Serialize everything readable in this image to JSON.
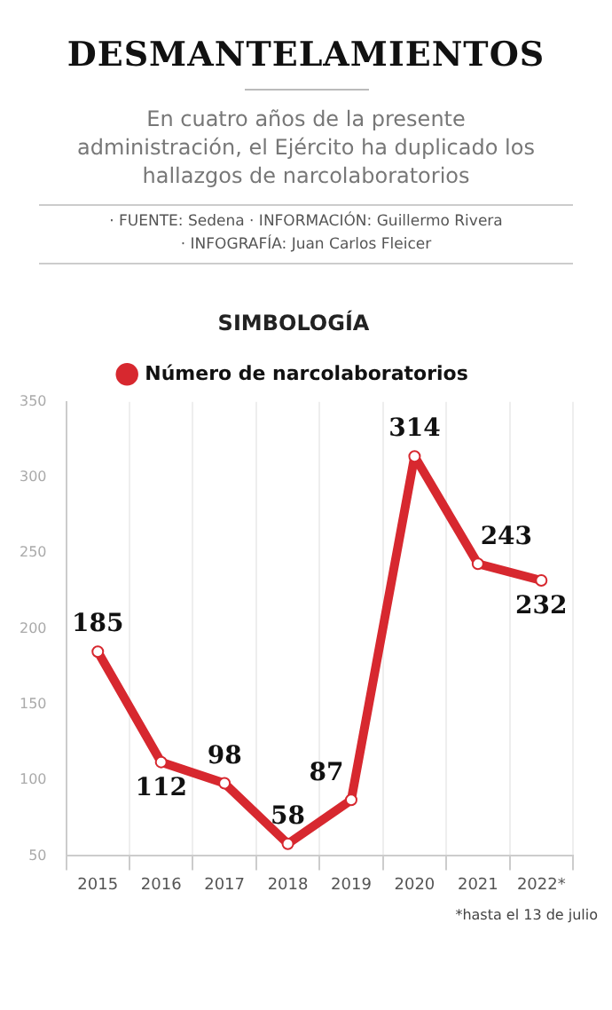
{
  "chart_data": {
    "type": "line",
    "title": "DESMANTELAMIENTOS",
    "subtitle": "En cuatro años de la presente administración, el Ejército ha duplicado los hallazgos de narcolaboratorios",
    "annotations": [
      "· FUENTE: Sedena · INFORMACIÓN: Guillermo Rivera",
      "· INFOGRAFÍA: Juan Carlos Fleicer",
      "*hasta el 13 de julio"
    ],
    "legend_title": "SIMBOLOGÍA",
    "categories": [
      "2015",
      "2016",
      "2017",
      "2018",
      "2019",
      "2020",
      "2021",
      "2022*"
    ],
    "series": [
      {
        "name": "Número de narcolaboratorios",
        "color": "#d7282f",
        "values": [
          185,
          112,
          98,
          58,
          87,
          314,
          243,
          232
        ]
      }
    ],
    "ylim": [
      50,
      350
    ],
    "yticks": [
      50,
      100,
      150,
      200,
      250,
      300,
      350
    ],
    "grid": "x",
    "legend": "top",
    "data_labels": true,
    "marker": "circle",
    "line_style": "solid"
  }
}
